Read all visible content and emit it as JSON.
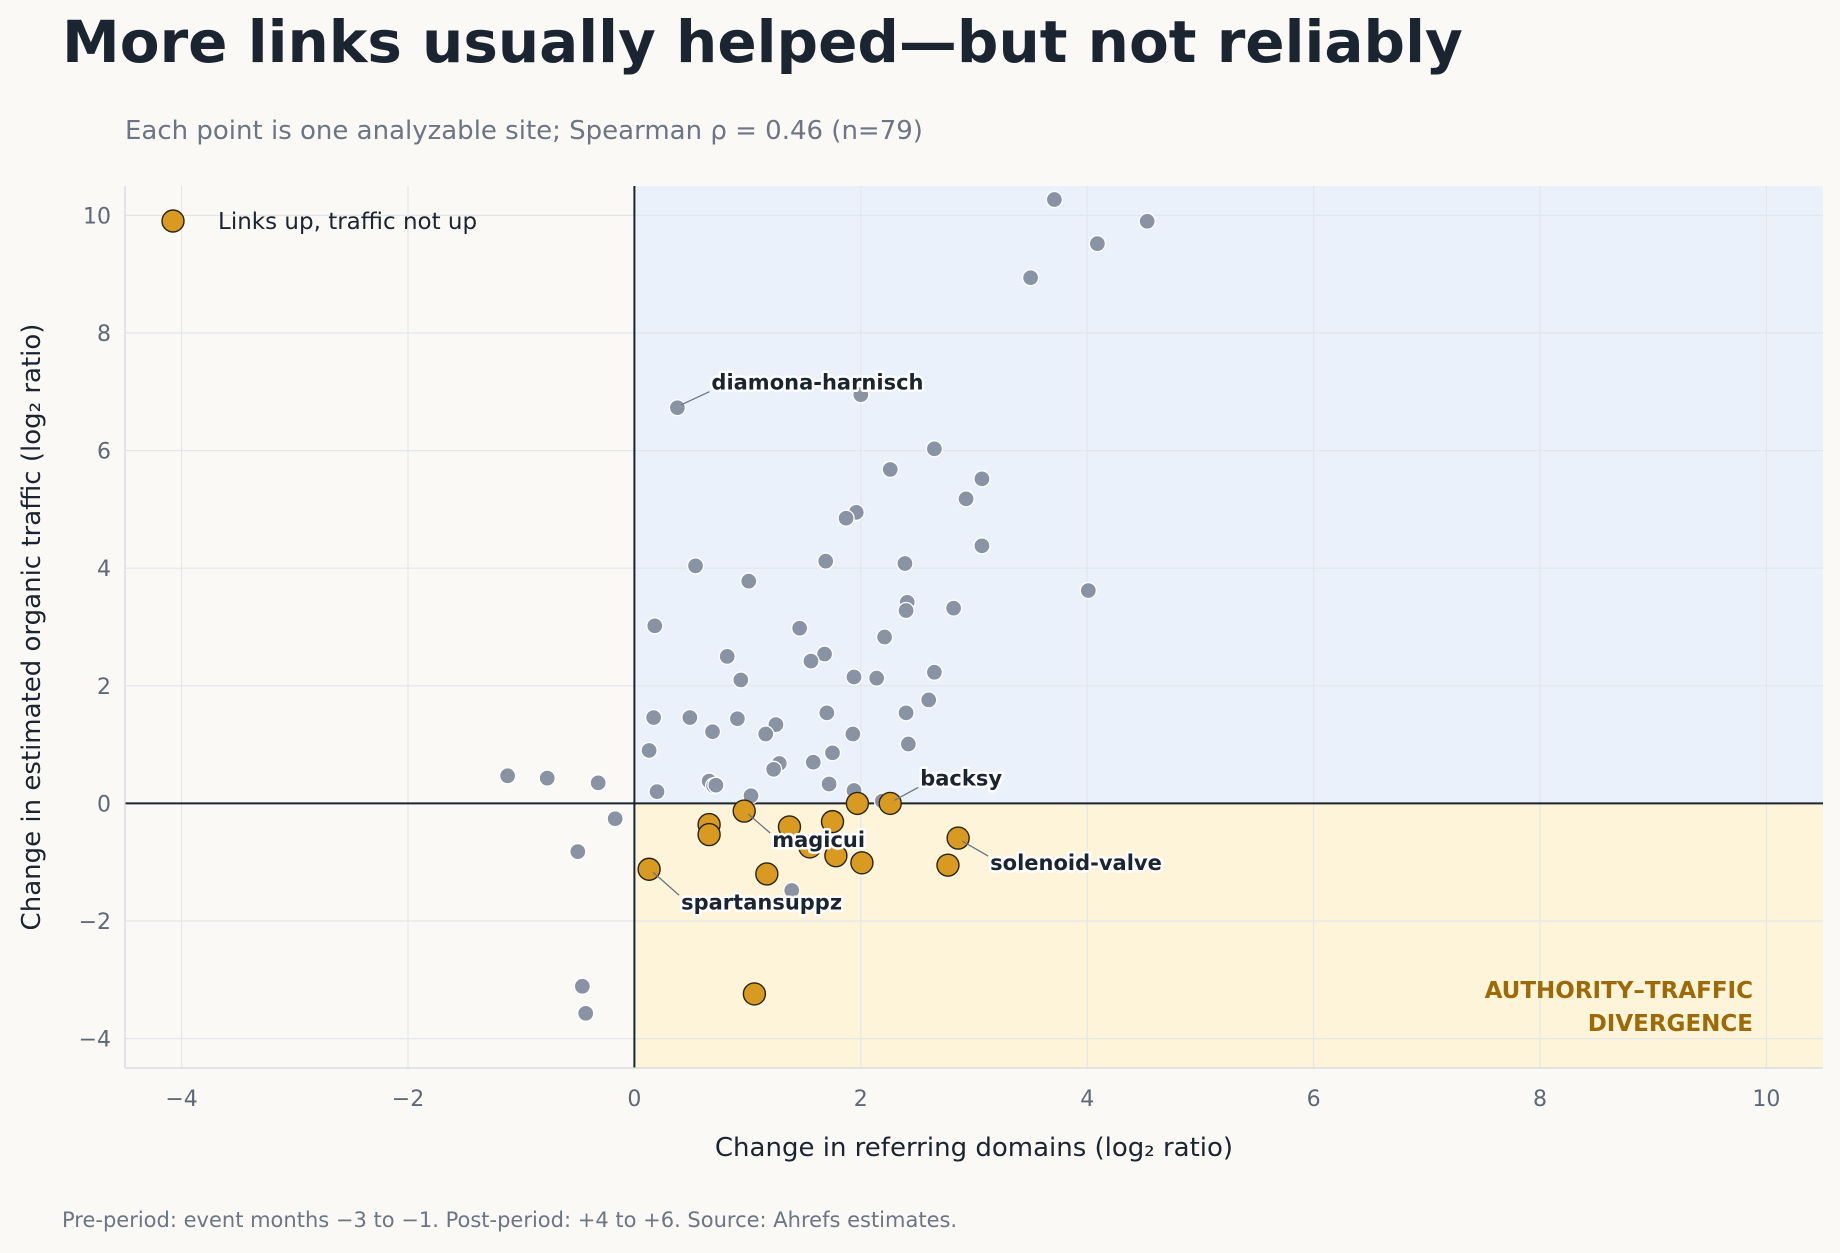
{
  "title": "More links usually helped—but not reliably",
  "subtitle": "Each point is one analyzable site; Spearman ρ = 0.46 (n=79)",
  "footnote": "Pre-period: event months −3 to −1. Post-period: +4 to +6. Source: Ahrefs estimates.",
  "colors": {
    "background": "#faf9f5",
    "upper_right_region": "#eaf1fa",
    "lower_right_region": "#fdf4d9",
    "gray_point": "#8a93a3",
    "highlight_point": "#d99a22",
    "highlight_edge": "#2a2418",
    "region_label": "#9c6a07",
    "axis_line": "#1b2431",
    "grid": "#e4e6ea"
  },
  "chart_data": {
    "type": "scatter",
    "xlabel": "Change in referring domains (log₂ ratio)",
    "ylabel": "Change in estimated organic traffic (log₂ ratio)",
    "xlim": [
      -4.5,
      10.5
    ],
    "ylim": [
      -4.5,
      10.5
    ],
    "xticks": [
      -4,
      -2,
      0,
      2,
      4,
      6,
      8,
      10
    ],
    "yticks": [
      -4,
      -2,
      0,
      2,
      4,
      6,
      8,
      10
    ],
    "xtick_labels": [
      "−4",
      "−2",
      "0",
      "2",
      "4",
      "6",
      "8",
      "10"
    ],
    "ytick_labels": [
      "−4",
      "−2",
      "0",
      "2",
      "4",
      "6",
      "8",
      "10"
    ],
    "grid": true,
    "reference_lines": {
      "x": 0,
      "y": 0
    },
    "shaded_regions": [
      {
        "name": "upper-right",
        "x": [
          0,
          10.5
        ],
        "y": [
          0,
          10.5
        ]
      },
      {
        "name": "lower-right",
        "x": [
          0,
          10.5
        ],
        "y": [
          -4.5,
          0
        ]
      }
    ],
    "region_label": [
      "AUTHORITY–TRAFFIC",
      "DIVERGENCE"
    ],
    "legend": {
      "placement": "top-left",
      "label": "Links up, traffic not up"
    },
    "series": [
      {
        "points": [
          [
            3.71,
            10.27
          ],
          [
            4.53,
            9.9
          ],
          [
            4.09,
            9.52
          ],
          [
            3.5,
            8.94
          ],
          [
            0.38,
            6.73
          ],
          [
            2.0,
            6.95
          ],
          [
            2.65,
            6.03
          ],
          [
            2.26,
            5.68
          ],
          [
            3.07,
            5.52
          ],
          [
            2.93,
            5.18
          ],
          [
            1.96,
            4.95
          ],
          [
            1.87,
            4.85
          ],
          [
            3.07,
            4.38
          ],
          [
            1.69,
            4.12
          ],
          [
            2.39,
            4.08
          ],
          [
            0.54,
            4.04
          ],
          [
            1.01,
            3.78
          ],
          [
            4.01,
            3.62
          ],
          [
            2.41,
            3.42
          ],
          [
            2.82,
            3.32
          ],
          [
            2.4,
            3.28
          ],
          [
            0.18,
            3.02
          ],
          [
            1.46,
            2.98
          ],
          [
            2.21,
            2.83
          ],
          [
            1.68,
            2.54
          ],
          [
            0.82,
            2.5
          ],
          [
            1.56,
            2.42
          ],
          [
            2.65,
            2.23
          ],
          [
            1.94,
            2.15
          ],
          [
            2.14,
            2.13
          ],
          [
            0.94,
            2.1
          ],
          [
            2.6,
            1.76
          ],
          [
            1.7,
            1.54
          ],
          [
            2.4,
            1.54
          ],
          [
            0.17,
            1.46
          ],
          [
            0.49,
            1.46
          ],
          [
            0.91,
            1.44
          ],
          [
            1.25,
            1.34
          ],
          [
            0.69,
            1.22
          ],
          [
            1.16,
            1.18
          ],
          [
            1.93,
            1.18
          ],
          [
            2.42,
            1.01
          ],
          [
            0.13,
            0.9
          ],
          [
            1.75,
            0.86
          ],
          [
            1.28,
            0.68
          ],
          [
            1.58,
            0.7
          ],
          [
            1.23,
            0.58
          ],
          [
            -1.12,
            0.47
          ],
          [
            -0.77,
            0.43
          ],
          [
            0.66,
            0.38
          ],
          [
            -0.32,
            0.35
          ],
          [
            1.72,
            0.33
          ],
          [
            0.7,
            0.3
          ],
          [
            0.72,
            0.31
          ],
          [
            1.94,
            0.22
          ],
          [
            0.2,
            0.2
          ],
          [
            1.03,
            0.13
          ],
          [
            2.19,
            0.04
          ],
          [
            -0.17,
            -0.26
          ],
          [
            -0.5,
            -0.82
          ],
          [
            -0.46,
            -3.11
          ],
          [
            -0.43,
            -3.57
          ],
          [
            1.68,
            -0.62
          ],
          [
            1.39,
            -1.48
          ]
        ]
      },
      {
        "name": "Links up, traffic not up",
        "points": [
          [
            1.97,
            0.0
          ],
          [
            2.26,
            0.0
          ],
          [
            0.97,
            -0.13
          ],
          [
            0.66,
            -0.36
          ],
          [
            1.37,
            -0.4
          ],
          [
            1.75,
            -0.31
          ],
          [
            0.66,
            -0.53
          ],
          [
            1.55,
            -0.74
          ],
          [
            2.86,
            -0.59
          ],
          [
            1.78,
            -0.89
          ],
          [
            2.01,
            -1.01
          ],
          [
            2.77,
            -1.05
          ],
          [
            0.13,
            -1.12
          ],
          [
            1.17,
            -1.2
          ],
          [
            1.06,
            -3.24
          ]
        ]
      }
    ],
    "annotations": [
      {
        "text": "diamona-harnisch",
        "x": 0.38,
        "y": 6.73
      },
      {
        "text": "backsy",
        "x": 2.26,
        "y": 0.0
      },
      {
        "text": "magicui",
        "x": 0.97,
        "y": -0.13
      },
      {
        "text": "solenoid-valve",
        "x": 2.86,
        "y": -0.59
      },
      {
        "text": "spartansuppz",
        "x": 0.13,
        "y": -1.12
      }
    ]
  }
}
